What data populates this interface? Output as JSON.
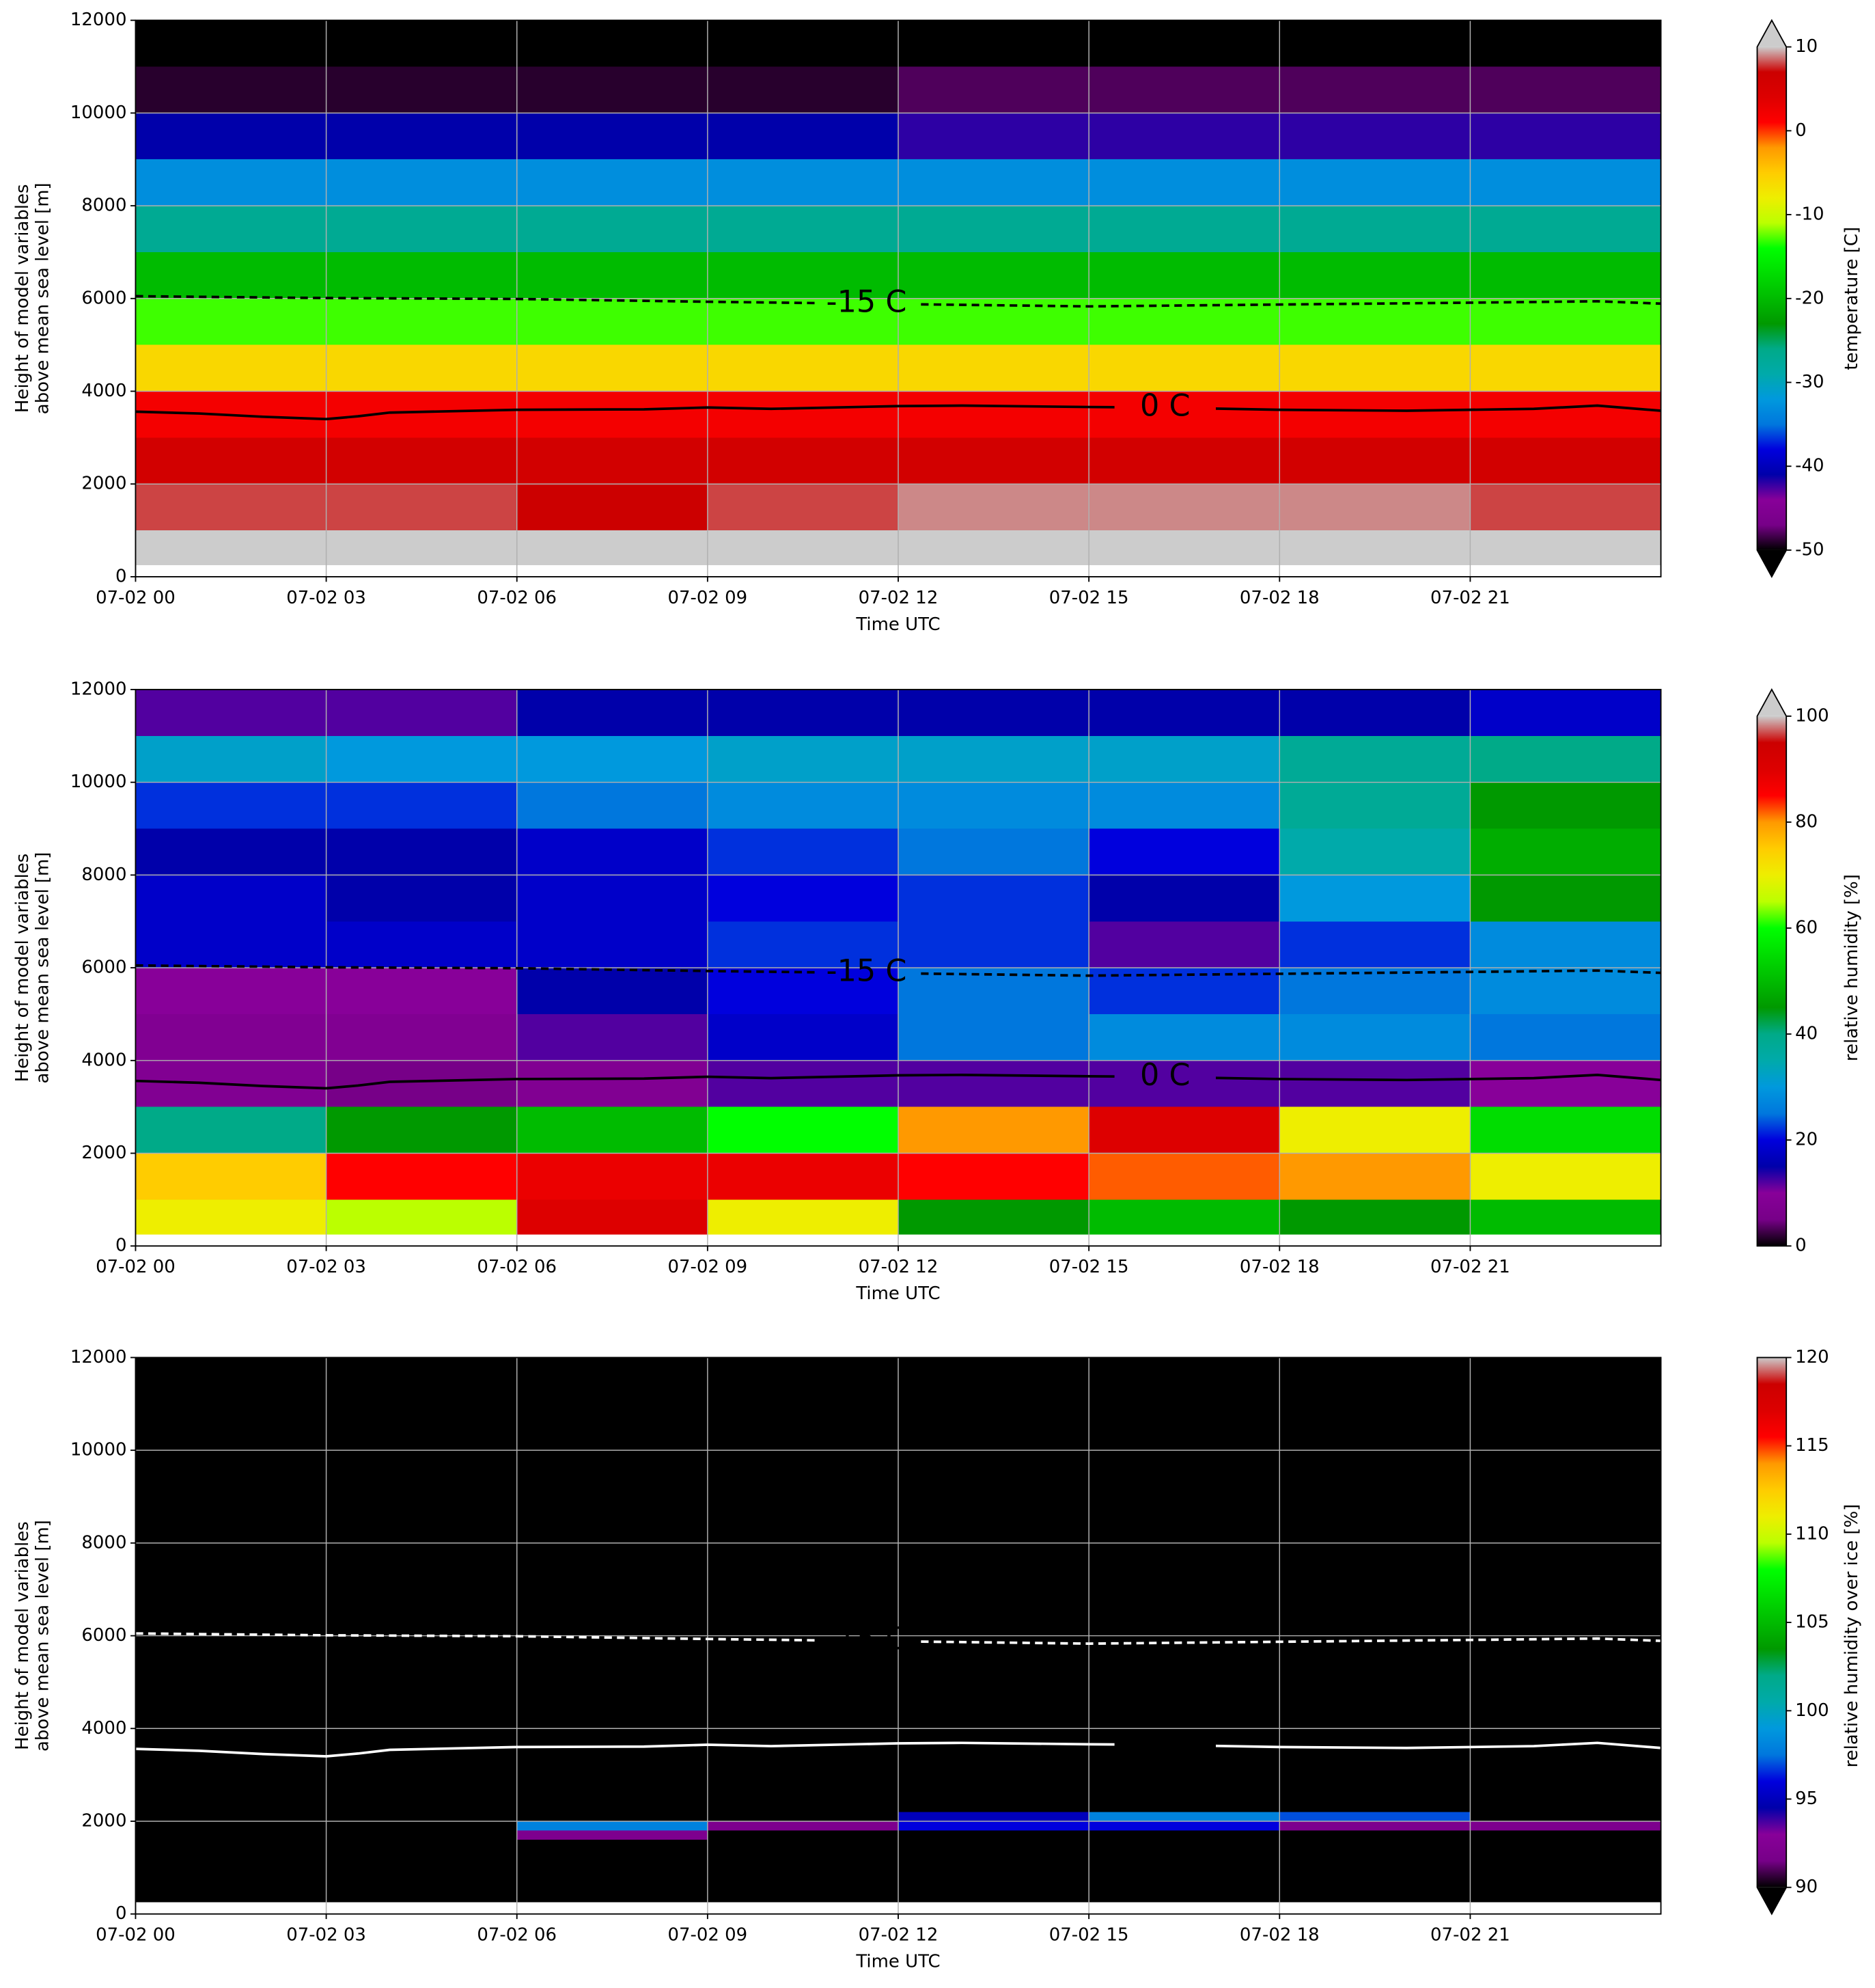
{
  "colormap": {
    "colors": [
      "#000000",
      "#770088",
      "#880099",
      "#0000aa",
      "#0000dd",
      "#0077dd",
      "#0099dd",
      "#00aaaa",
      "#00aa88",
      "#009900",
      "#00bb00",
      "#00dd00",
      "#00ff00",
      "#bbff00",
      "#eeee00",
      "#ffcc00",
      "#ff9900",
      "#ff0000",
      "#dd0000",
      "#cc0000",
      "#cccccc"
    ],
    "over": "#cccccc",
    "under": "#000000"
  },
  "chart_data": [
    {
      "type": "heatmap",
      "ylabel": [
        "Height of model variables",
        "above mean sea level [m]"
      ],
      "xlabel": "Time UTC",
      "colorbar_label": "temperature [C]",
      "xlim": [
        0,
        24
      ],
      "ylim": [
        0,
        12000
      ],
      "grid": true,
      "xticks": [
        {
          "value": 0,
          "label": "07-02 00"
        },
        {
          "value": 3,
          "label": "07-02 03"
        },
        {
          "value": 6,
          "label": "07-02 06"
        },
        {
          "value": 9,
          "label": "07-02 09"
        },
        {
          "value": 12,
          "label": "07-02 12"
        },
        {
          "value": 15,
          "label": "07-02 15"
        },
        {
          "value": 18,
          "label": "07-02 18"
        },
        {
          "value": 21,
          "label": "07-02 21"
        }
      ],
      "yticks": [
        0,
        2000,
        4000,
        6000,
        8000,
        10000,
        12000
      ],
      "clim": [
        -50,
        10
      ],
      "cticks": [
        -50,
        -40,
        -30,
        -20,
        -10,
        0,
        10
      ],
      "extend": "both",
      "contour_color": "#000000",
      "x_edges": [
        0,
        3,
        6,
        9,
        12,
        15,
        18,
        21,
        24
      ],
      "y_edges": [
        250,
        1000,
        2000,
        3000,
        4000,
        5000,
        6000,
        7000,
        8000,
        9000,
        10000,
        11000,
        12000
      ],
      "z": [
        [
          14,
          14,
          14,
          14,
          14,
          14,
          14,
          14
        ],
        [
          8,
          8,
          7,
          8,
          9,
          9,
          9,
          8
        ],
        [
          6,
          6,
          6,
          6,
          6,
          6,
          6,
          6
        ],
        [
          2,
          2,
          2,
          2,
          2,
          2,
          2,
          2
        ],
        [
          -6,
          -6,
          -6,
          -6,
          -6,
          -6,
          -6,
          -6
        ],
        [
          -13,
          -13,
          -13,
          -13,
          -13,
          -13,
          -13,
          -13
        ],
        [
          -20,
          -20,
          -20,
          -20,
          -20,
          -20,
          -20,
          -20
        ],
        [
          -27,
          -27,
          -27,
          -27,
          -27,
          -27,
          -27,
          -27
        ],
        [
          -33,
          -33,
          -33,
          -33,
          -33,
          -33,
          -33,
          -33
        ],
        [
          -41,
          -41,
          -41,
          -41,
          -42,
          -42,
          -42,
          -42
        ],
        [
          -49,
          -49,
          -49,
          -49,
          -48,
          -48,
          -48,
          -48
        ],
        [
          -55,
          -55,
          -55,
          -55,
          -55,
          -55,
          -55,
          -55
        ]
      ],
      "series": [
        {
          "name": "-15 C",
          "dashed": true,
          "x": [
            0,
            3,
            6,
            9,
            12,
            15,
            18,
            21,
            23,
            24
          ],
          "y": [
            6050,
            6010,
            5990,
            5930,
            5880,
            5830,
            5870,
            5910,
            5940,
            5890
          ]
        },
        {
          "name": "0 C",
          "dashed": false,
          "x": [
            0,
            1,
            2,
            3,
            3.5,
            4,
            6,
            8,
            9,
            10,
            12,
            13,
            15,
            16,
            18,
            20,
            22,
            23,
            24
          ],
          "y": [
            3560,
            3520,
            3450,
            3400,
            3460,
            3540,
            3600,
            3610,
            3650,
            3620,
            3680,
            3690,
            3660,
            3650,
            3600,
            3580,
            3620,
            3690,
            3580
          ]
        }
      ]
    },
    {
      "type": "heatmap",
      "ylabel": [
        "Height of model variables",
        "above mean sea level [m]"
      ],
      "xlabel": "Time UTC",
      "colorbar_label": "relative humidity [%]",
      "xlim": [
        0,
        24
      ],
      "ylim": [
        0,
        12000
      ],
      "grid": true,
      "xticks": [
        {
          "value": 0,
          "label": "07-02 00"
        },
        {
          "value": 3,
          "label": "07-02 03"
        },
        {
          "value": 6,
          "label": "07-02 06"
        },
        {
          "value": 9,
          "label": "07-02 09"
        },
        {
          "value": 12,
          "label": "07-02 12"
        },
        {
          "value": 15,
          "label": "07-02 15"
        },
        {
          "value": 18,
          "label": "07-02 18"
        },
        {
          "value": 21,
          "label": "07-02 21"
        }
      ],
      "yticks": [
        0,
        2000,
        4000,
        6000,
        8000,
        10000,
        12000
      ],
      "clim": [
        0,
        100
      ],
      "cticks": [
        0,
        20,
        40,
        60,
        80,
        100
      ],
      "extend": "max",
      "contour_color": "#000000",
      "x_edges": [
        0,
        3,
        6,
        9,
        12,
        15,
        18,
        21,
        24
      ],
      "y_edges": [
        250,
        1000,
        2000,
        3000,
        4000,
        5000,
        6000,
        7000,
        8000,
        9000,
        10000,
        11000,
        12000
      ],
      "z": [
        [
          70,
          65,
          90,
          70,
          45,
          50,
          45,
          50
        ],
        [
          75,
          85,
          88,
          88,
          85,
          82,
          80,
          70
        ],
        [
          40,
          45,
          50,
          60,
          80,
          90,
          70,
          55
        ],
        [
          8,
          5,
          8,
          12,
          12,
          12,
          12,
          10
        ],
        [
          8,
          8,
          12,
          18,
          25,
          28,
          28,
          25
        ],
        [
          10,
          10,
          15,
          20,
          25,
          22,
          25,
          28
        ],
        [
          18,
          18,
          18,
          22,
          22,
          12,
          22,
          28
        ],
        [
          18,
          15,
          18,
          20,
          22,
          15,
          30,
          45
        ],
        [
          15,
          15,
          18,
          22,
          25,
          20,
          35,
          48
        ],
        [
          22,
          22,
          25,
          28,
          28,
          28,
          38,
          45
        ],
        [
          32,
          30,
          30,
          32,
          32,
          32,
          38,
          40
        ],
        [
          12,
          12,
          15,
          15,
          15,
          15,
          15,
          18
        ]
      ],
      "series": [
        {
          "name": "-15 C",
          "dashed": true,
          "x": [
            0,
            3,
            6,
            9,
            12,
            15,
            18,
            21,
            23,
            24
          ],
          "y": [
            6050,
            6010,
            5990,
            5930,
            5880,
            5830,
            5870,
            5910,
            5940,
            5890
          ]
        },
        {
          "name": "0 C",
          "dashed": false,
          "x": [
            0,
            1,
            2,
            3,
            3.5,
            4,
            6,
            8,
            9,
            10,
            12,
            13,
            15,
            16,
            18,
            20,
            22,
            23,
            24
          ],
          "y": [
            3560,
            3520,
            3450,
            3400,
            3460,
            3540,
            3600,
            3610,
            3650,
            3620,
            3680,
            3690,
            3660,
            3650,
            3600,
            3580,
            3620,
            3690,
            3580
          ]
        }
      ]
    },
    {
      "type": "heatmap",
      "ylabel": [
        "Height of model variables",
        "above mean sea level [m]"
      ],
      "xlabel": "Time UTC",
      "colorbar_label": "relative humidity over ice [%]",
      "xlim": [
        0,
        24
      ],
      "ylim": [
        0,
        12000
      ],
      "grid": true,
      "xticks": [
        {
          "value": 0,
          "label": "07-02 00"
        },
        {
          "value": 3,
          "label": "07-02 03"
        },
        {
          "value": 6,
          "label": "07-02 06"
        },
        {
          "value": 9,
          "label": "07-02 09"
        },
        {
          "value": 12,
          "label": "07-02 12"
        },
        {
          "value": 15,
          "label": "07-02 15"
        },
        {
          "value": 18,
          "label": "07-02 18"
        },
        {
          "value": 21,
          "label": "07-02 21"
        }
      ],
      "yticks": [
        0,
        2000,
        4000,
        6000,
        8000,
        10000,
        12000
      ],
      "clim": [
        90,
        120
      ],
      "cticks": [
        90,
        95,
        100,
        105,
        110,
        115,
        120
      ],
      "extend": "min",
      "contour_color": "#ffffff",
      "x_edges": [
        0,
        3,
        6,
        9,
        12,
        15,
        18,
        21,
        24
      ],
      "y_edges": [
        250,
        1600,
        1800,
        2000,
        2200,
        12000
      ],
      "z": [
        [
          50,
          50,
          50,
          50,
          50,
          50,
          50,
          50
        ],
        [
          50,
          50,
          92,
          50,
          50,
          50,
          50,
          50
        ],
        [
          50,
          50,
          98,
          92,
          96,
          96,
          92,
          92
        ],
        [
          50,
          50,
          50,
          50,
          95,
          98,
          97,
          50
        ],
        [
          50,
          50,
          50,
          50,
          50,
          50,
          50,
          50
        ]
      ],
      "series": [
        {
          "name": "-15 C",
          "dashed": true,
          "x": [
            0,
            3,
            6,
            9,
            12,
            15,
            18,
            21,
            23,
            24
          ],
          "y": [
            6050,
            6010,
            5990,
            5930,
            5880,
            5830,
            5870,
            5910,
            5940,
            5890
          ]
        },
        {
          "name": "0 C",
          "dashed": false,
          "x": [
            0,
            1,
            2,
            3,
            3.5,
            4,
            6,
            8,
            9,
            10,
            12,
            13,
            15,
            16,
            18,
            20,
            22,
            23,
            24
          ],
          "y": [
            3560,
            3520,
            3450,
            3400,
            3460,
            3540,
            3600,
            3610,
            3650,
            3620,
            3680,
            3690,
            3660,
            3650,
            3600,
            3580,
            3620,
            3690,
            3580
          ]
        }
      ]
    }
  ]
}
